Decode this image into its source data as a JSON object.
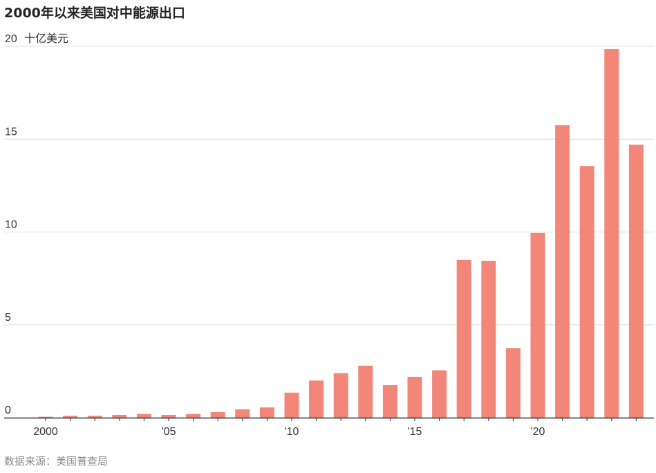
{
  "title": "2000年以来美国对中能源出口",
  "source": "数据来源：美国普查局",
  "chart_data": {
    "type": "bar",
    "title": "2000年以来美国对中能源出口",
    "unit_label": "十亿美元",
    "xlabel": "",
    "ylabel": "",
    "ylim": [
      0,
      20
    ],
    "yticks": [
      0,
      5,
      10,
      15,
      20
    ],
    "ytick_labels": [
      "0",
      "5",
      "10",
      "15",
      "20"
    ],
    "x_tick_years": [
      2000,
      2005,
      2010,
      2015,
      2020
    ],
    "x_tick_labels": [
      "2000",
      "'05",
      "'10",
      "'15",
      "'20"
    ],
    "categories": [
      2000,
      2001,
      2002,
      2003,
      2004,
      2005,
      2006,
      2007,
      2008,
      2009,
      2010,
      2011,
      2012,
      2013,
      2014,
      2015,
      2016,
      2017,
      2018,
      2019,
      2020,
      2021,
      2022,
      2023,
      2024
    ],
    "values": [
      0.05,
      0.1,
      0.1,
      0.15,
      0.2,
      0.15,
      0.2,
      0.3,
      0.45,
      0.55,
      1.35,
      2.0,
      2.4,
      2.8,
      1.75,
      2.2,
      2.55,
      8.5,
      8.45,
      3.75,
      9.95,
      15.75,
      13.55,
      19.85,
      14.7
    ],
    "grid": true,
    "bar_color": "#f28678"
  }
}
